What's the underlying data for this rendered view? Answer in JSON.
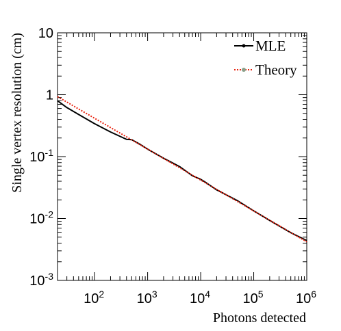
{
  "chart_data": {
    "type": "line",
    "xlabel": "Photons detected",
    "ylabel": "Single vertex resolution (cm)",
    "xscale": "log",
    "yscale": "log",
    "xlim": [
      20,
      1000000
    ],
    "ylim": [
      0.001,
      10
    ],
    "x_tick_labels": [
      {
        "base": "10",
        "exp": "2",
        "value": 100
      },
      {
        "base": "10",
        "exp": "3",
        "value": 1000
      },
      {
        "base": "10",
        "exp": "4",
        "value": 10000
      },
      {
        "base": "10",
        "exp": "5",
        "value": 100000
      },
      {
        "base": "10",
        "exp": "6",
        "value": 1000000
      }
    ],
    "y_tick_labels": [
      {
        "base": "10",
        "exp": "-3",
        "value": 0.001
      },
      {
        "base": "10",
        "exp": "-2",
        "value": 0.01
      },
      {
        "base": "10",
        "exp": "-1",
        "value": 0.1
      },
      {
        "text": "1",
        "value": 1
      },
      {
        "text": "10",
        "value": 10
      }
    ],
    "legend_position": "top-right",
    "series": [
      {
        "name": "MLE",
        "color": "#000000",
        "style": "solid",
        "x": [
          20,
          30,
          50,
          100,
          200,
          400,
          500,
          700,
          1000,
          2000,
          4000,
          7000,
          10000,
          12000,
          20000,
          50000,
          100000,
          200000,
          500000,
          1000000
        ],
        "y": [
          0.8,
          0.62,
          0.48,
          0.34,
          0.25,
          0.19,
          0.188,
          0.16,
          0.132,
          0.094,
          0.069,
          0.049,
          0.043,
          0.039,
          0.029,
          0.0193,
          0.0133,
          0.0093,
          0.0059,
          0.0044
        ]
      },
      {
        "name": "Theory",
        "color": "#e8200c",
        "style": "dotted",
        "x": [
          20,
          1000000
        ],
        "y": [
          0.93,
          0.0042
        ]
      }
    ]
  }
}
